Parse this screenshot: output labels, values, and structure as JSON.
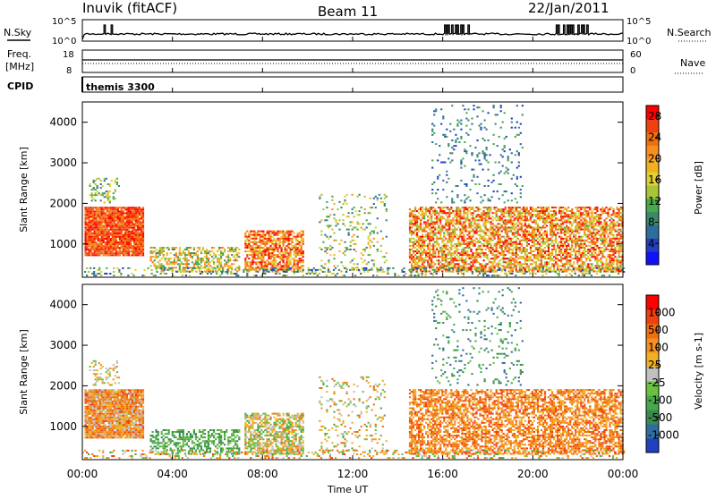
{
  "header": {
    "site": "Inuvik (fitACF)",
    "beam": "Beam 11",
    "date": "22/Jan/2011"
  },
  "strip_labels": {
    "nsky": "N.Sky",
    "nsearch": "N.Search",
    "freq": "Freq.",
    "freq_unit": "[MHz]",
    "nave": "Nave",
    "cpid_label": "CPID",
    "cpid_value": "themis 3300"
  },
  "strip_ticks": {
    "noise_top": "10^5",
    "noise_bottom": "10^0",
    "freq_top": "18",
    "freq_bottom": "8",
    "nave_top": "60",
    "nave_bottom": "0"
  },
  "chart_data": [
    {
      "type": "heatmap",
      "name": "power",
      "ylabel": "Slant Range [km]",
      "xlabel": "Time UT",
      "x_ticks": [
        "00:00",
        "04:00",
        "08:00",
        "12:00",
        "16:00",
        "20:00",
        "00:00"
      ],
      "xlim_hours": [
        0,
        24
      ],
      "ylim_km": [
        180,
        4500
      ],
      "y_ticks": [
        1000,
        2000,
        3000,
        4000
      ],
      "colorbar": {
        "label": "Power [dB]",
        "ticks": [
          4,
          8,
          12,
          16,
          20,
          24,
          28
        ],
        "range": [
          0,
          30
        ],
        "colors": [
          "#1010ff",
          "#2040c0",
          "#2e6da0",
          "#3a8a6a",
          "#49a84a",
          "#a8c43a",
          "#e0d030",
          "#f0b020",
          "#f59020",
          "#f07010",
          "#f04010",
          "#ff0000"
        ]
      }
    },
    {
      "type": "heatmap",
      "name": "velocity",
      "ylabel": "Slant Range [km]",
      "xlabel": "Time UT",
      "x_ticks": [
        "00:00",
        "04:00",
        "08:00",
        "12:00",
        "16:00",
        "20:00",
        "00:00"
      ],
      "xlim_hours": [
        0,
        24
      ],
      "ylim_km": [
        180,
        4500
      ],
      "y_ticks": [
        1000,
        2000,
        3000,
        4000
      ],
      "colorbar": {
        "label": "Velocity [m s-1]",
        "ticks": [
          "1000",
          "500",
          "100",
          "25",
          "-25",
          "-100",
          "-500",
          "-1000"
        ],
        "colors": [
          "#2040c0",
          "#2e6da0",
          "#3a8a50",
          "#49a84a",
          "#6ac040",
          "#c0c0c0",
          "#f0b020",
          "#f59020",
          "#f07010",
          "#f04010",
          "#ff0000"
        ]
      }
    }
  ]
}
